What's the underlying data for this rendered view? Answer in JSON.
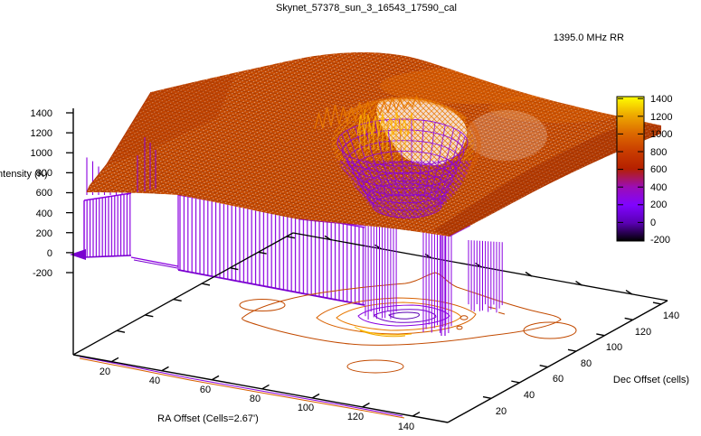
{
  "title": "Skynet_57378_sun_3_16543_17590_cal",
  "legend": {
    "series_label": "1395.0 MHz RR"
  },
  "axes": {
    "x": {
      "label": "RA Offset (Cells=2.67')",
      "ticks": [
        "20",
        "40",
        "60",
        "80",
        "100",
        "120",
        "140"
      ]
    },
    "y": {
      "label": "Dec Offset (cells)",
      "ticks": [
        "20",
        "40",
        "60",
        "80",
        "100",
        "120",
        "140"
      ]
    },
    "z": {
      "label": "Intensity (K)",
      "ticks": [
        "1400",
        "1200",
        "1000",
        "800",
        "600",
        "400",
        "200",
        "0",
        "-200"
      ]
    }
  },
  "colorbar": {
    "ticks": [
      "1400",
      "1200",
      "1000",
      "800",
      "600",
      "400",
      "200",
      "0",
      "-200"
    ],
    "palette": [
      {
        "value": -200,
        "color": "#000000"
      },
      {
        "value": 0,
        "color": "#5a00b4"
      },
      {
        "value": 200,
        "color": "#8004ff"
      },
      {
        "value": 400,
        "color": "#9c0db4"
      },
      {
        "value": 600,
        "color": "#b52000"
      },
      {
        "value": 800,
        "color": "#ca3e00"
      },
      {
        "value": 1000,
        "color": "#dd6b00"
      },
      {
        "value": 1200,
        "color": "#eeab00"
      },
      {
        "value": 1400,
        "color": "#ffff00"
      }
    ]
  },
  "colors": {
    "background": "#ffffff",
    "axis": "#000000",
    "surface_plateau": "#c64a00",
    "surface_mesh_shadow": "#8f2c00",
    "cliff_walls": "#8a00e0",
    "crater_rim": "#f09000",
    "crater_pit": "#7a00d8",
    "contour_outer": "#c24a00",
    "contour_mid": "#e87800",
    "contour_yellow": "#ffc000",
    "contour_inner_violet": "#7000c8"
  },
  "chart_data": {
    "type": "3d-surface-with-base-contours",
    "title": "Skynet_57378_sun_3_16543_17590_cal",
    "series": [
      {
        "name": "1395.0 MHz RR",
        "render": "pm3d palette-mapped mesh surface with contours projected onto the base plane"
      }
    ],
    "x": {
      "label": "RA Offset (Cells=2.67')",
      "range": [
        10,
        145
      ],
      "ticks": [
        20,
        40,
        60,
        80,
        100,
        120,
        140
      ]
    },
    "y": {
      "label": "Dec Offset (cells)",
      "range": [
        10,
        145
      ],
      "ticks": [
        20,
        40,
        60,
        80,
        100,
        120,
        140
      ]
    },
    "z": {
      "label": "Intensity (K)",
      "range": [
        -200,
        1400
      ],
      "ticks": [
        -200,
        0,
        200,
        400,
        600,
        800,
        1000,
        1200,
        1400
      ]
    },
    "palette_description": "black to violet to red-orange to yellow (gnuplot pm3d default rgbformulae 7,5,15)",
    "surface_features": [
      "broad plateau at roughly 700-900 K covering most of the RA/Dec grid, sloping gently down toward the front-right",
      "central crater-like depression near RA~80, Dec~90 with oscillating rim spikes reaching ~1200-1400 K and a wireframe pit descending to ~0-400 K",
      "intensity drops abruptly to ~0 K for RA less than ~45 cells, forming violet cliff walls on the left and front-left edges",
      "bundles of violet drop-lines fall from the crater front edge down below the base plane",
      "projected base contours form concentric rings (outer dark-orange, middle orange/yellow, inner violet) centered near RA~80, Dec~90, plus small closed contour blobs at outlying positions and a contour line hugging the RA axis"
    ],
    "legend_position": "top-right",
    "grid": false
  }
}
